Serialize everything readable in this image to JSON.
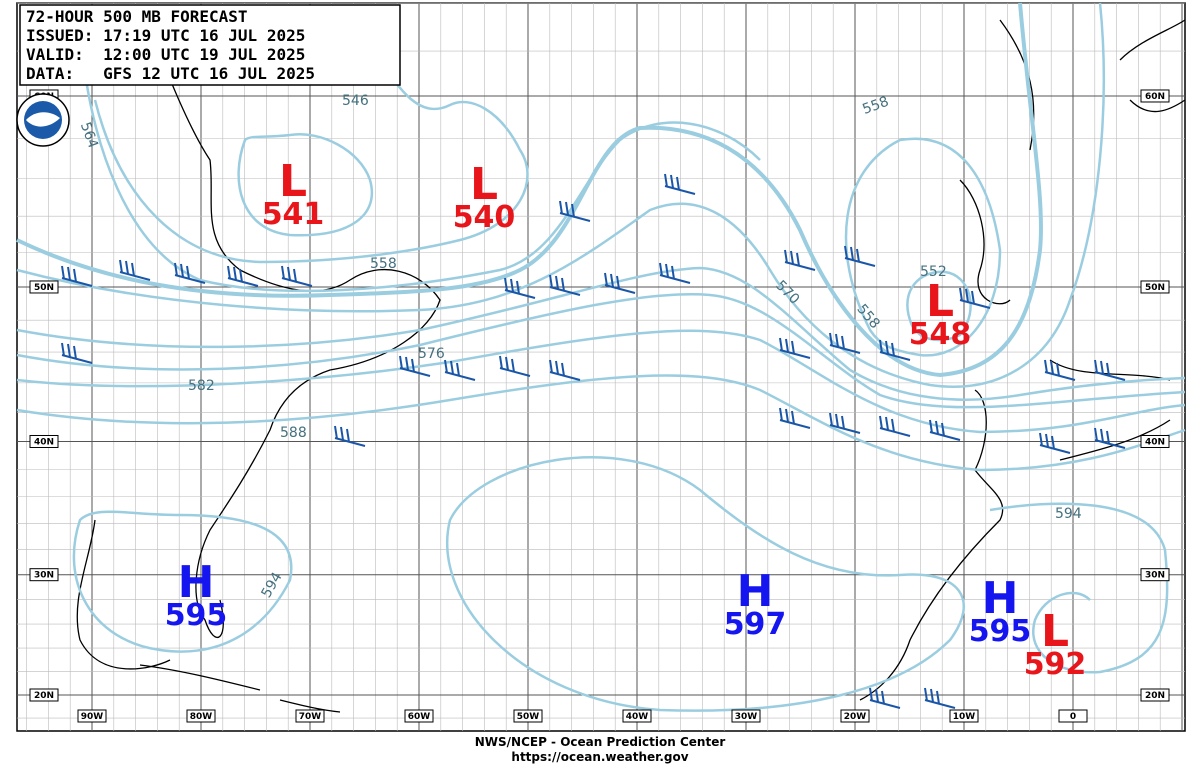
{
  "header": {
    "lines": [
      "72-HOUR 500 MB FORECAST",
      "ISSUED: 17:19 UTC 16 JUL 2025",
      "VALID:  12:00 UTC 19 JUL 2025",
      "DATA:   GFS 12 UTC 16 JUL 2025"
    ]
  },
  "centers": [
    {
      "type": "L",
      "value": 541
    },
    {
      "type": "L",
      "value": 540
    },
    {
      "type": "L",
      "value": 548
    },
    {
      "type": "H",
      "value": 595
    },
    {
      "type": "H",
      "value": 597
    },
    {
      "type": "H",
      "value": 595
    },
    {
      "type": "L",
      "value": 592
    }
  ],
  "contour_labels": [
    564,
    546,
    558,
    558,
    552,
    570,
    558,
    576,
    582,
    588,
    594,
    594
  ],
  "lat_labels": [
    "60N",
    "50N",
    "40N",
    "30N",
    "20N"
  ],
  "lon_labels": [
    "90W",
    "80W",
    "70W",
    "60W",
    "50W",
    "40W",
    "30W",
    "20W",
    "10W",
    "0"
  ],
  "footer": {
    "lines": [
      "NWS/NCEP - Ocean Prediction Center",
      "https://ocean.weather.gov"
    ]
  }
}
